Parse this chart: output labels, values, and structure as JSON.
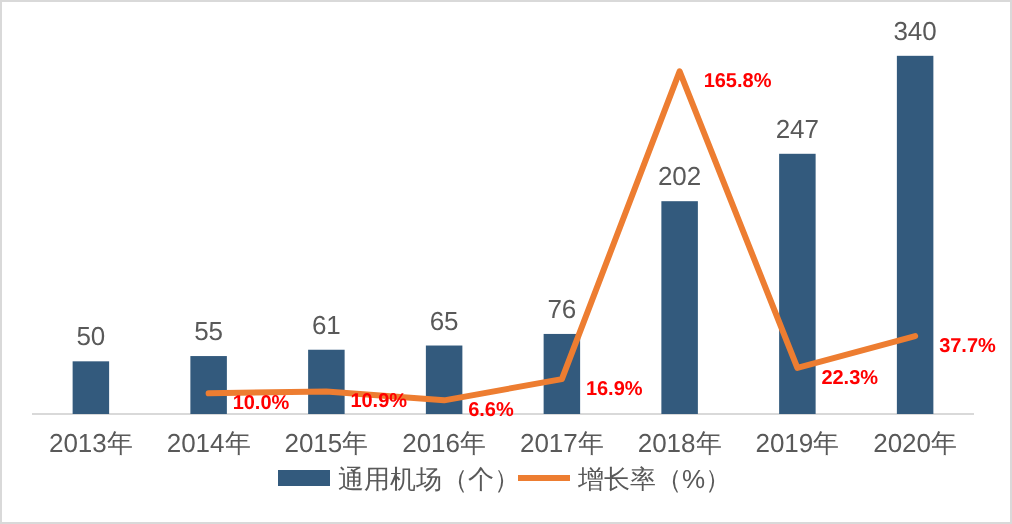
{
  "chart_data": {
    "type": "bar",
    "categories": [
      "2013年",
      "2014年",
      "2015年",
      "2016年",
      "2017年",
      "2018年",
      "2019年",
      "2020年"
    ],
    "series": [
      {
        "name": "通用机场（个）",
        "color": "#335a7d",
        "values": [
          50,
          55,
          61,
          65,
          76,
          202,
          247,
          340
        ]
      },
      {
        "name": "增长率（%）",
        "type": "line",
        "axis": "y2",
        "color": "#ed7d31",
        "values": [
          null,
          10.0,
          10.9,
          6.6,
          16.9,
          165.8,
          22.3,
          37.7
        ],
        "value_labels": [
          null,
          "10.0%",
          "10.9%",
          "6.6%",
          "16.9%",
          "165.8%",
          "22.3%",
          "37.7%"
        ]
      }
    ],
    "data_labels": true,
    "legend": "bottom",
    "marker": "none",
    "grid": false,
    "tick_labels": "x"
  }
}
